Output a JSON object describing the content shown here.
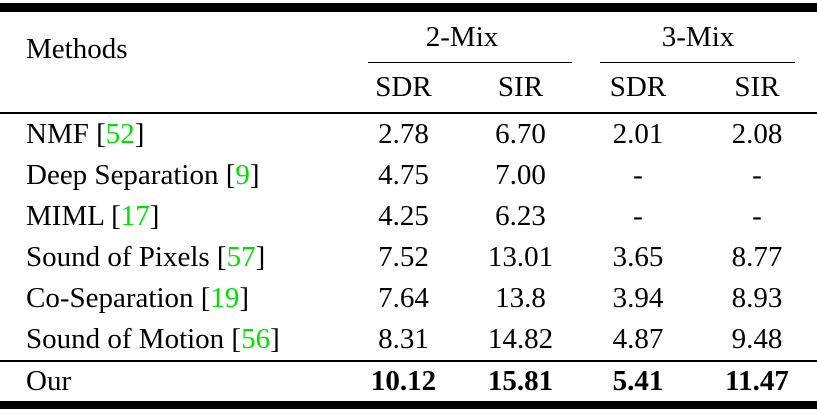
{
  "table": {
    "header": {
      "methods_label": "Methods",
      "groups": [
        {
          "label": "2-Mix"
        },
        {
          "label": "3-Mix"
        }
      ],
      "subheaders": [
        "SDR",
        "SIR",
        "SDR",
        "SIR"
      ]
    },
    "rows": [
      {
        "method": "NMF [",
        "cite": "52",
        "close": "]",
        "values": [
          "2.78",
          "6.70",
          "2.01",
          "2.08"
        ]
      },
      {
        "method": "Deep Separation [",
        "cite": "9",
        "close": "]",
        "values": [
          "4.75",
          "7.00",
          "-",
          "-"
        ]
      },
      {
        "method": "MIML [",
        "cite": "17",
        "close": "]",
        "values": [
          "4.25",
          "6.23",
          "-",
          "-"
        ]
      },
      {
        "method": "Sound of Pixels [",
        "cite": "57",
        "close": "]",
        "values": [
          "7.52",
          "13.01",
          "3.65",
          "8.77"
        ]
      },
      {
        "method": "Co-Separation [",
        "cite": "19",
        "close": "]",
        "values": [
          "7.64",
          "13.8",
          "3.94",
          "8.93"
        ]
      },
      {
        "method": "Sound of Motion [",
        "cite": "56",
        "close": "]",
        "values": [
          "8.31",
          "14.82",
          "4.87",
          "9.48"
        ]
      }
    ],
    "highlight_row": {
      "method": "Our",
      "cite": "",
      "close": "",
      "values": [
        "10.12",
        "15.81",
        "5.41",
        "11.47"
      ]
    },
    "colors": {
      "citation_green": "#00e000",
      "text": "#000000",
      "background": "#ffffff"
    }
  }
}
